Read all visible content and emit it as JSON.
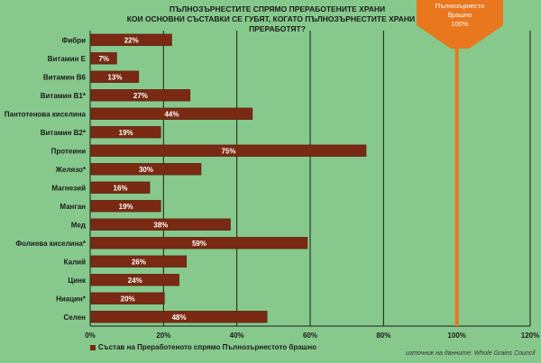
{
  "chart_data": {
    "type": "bar",
    "orientation": "horizontal",
    "title": "ПЪЛНОЗЪРНЕСТИТЕ СПРЯМО ПРЕРАБОТЕНИТЕ ХРАНИ",
    "subtitle": "КОИ ОСНОВНИ СЪСТАВКИ СЕ ГУБЯТ, КОГАТО ПЪЛНОЗЪРНЕСТИТЕ ХРАНИ СЕ ПРЕРАБОТЯТ?",
    "categories": [
      "Фибри",
      "Витамин Е",
      "Витамин В6",
      "Витамин В1*",
      "Пантотенова киселина",
      "Витамин В2*",
      "Протеини",
      "Желязо*",
      "Магнезий",
      "Манган",
      "Мед",
      "Фолиева киселина*",
      "Калий",
      "Цинк",
      "Ниацин*",
      "Селен"
    ],
    "series": [
      {
        "name": "Състав на Преработеното спрямо Пълнозърнестото брашно",
        "values": [
          22,
          7,
          13,
          27,
          44,
          19,
          75,
          30,
          16,
          19,
          38,
          59,
          26,
          24,
          20,
          48
        ],
        "labels": [
          "22%",
          "7%",
          "13%",
          "27%",
          "44%",
          "19%",
          "75%",
          "30%",
          "16%",
          "19%",
          "38%",
          "59%",
          "26%",
          "24%",
          "20%",
          "48%"
        ]
      }
    ],
    "x_ticks": [
      "0%",
      "20%",
      "40%",
      "60%",
      "80%",
      "100%",
      "120%"
    ],
    "xlim": [
      0,
      120
    ],
    "grid": true,
    "reference_line": {
      "value": 100,
      "label_lines": [
        "Пълнозърнесто",
        "брашно",
        "100%"
      ]
    },
    "legend_position": "bottom-left",
    "source": "източник на данните: Whole Grains Council"
  },
  "colors": {
    "background": "#87c98c",
    "bar": "#7a2a12",
    "bar_edge": "#4a1608",
    "callout": "#e8771e",
    "reference_line": "#e8771e"
  }
}
